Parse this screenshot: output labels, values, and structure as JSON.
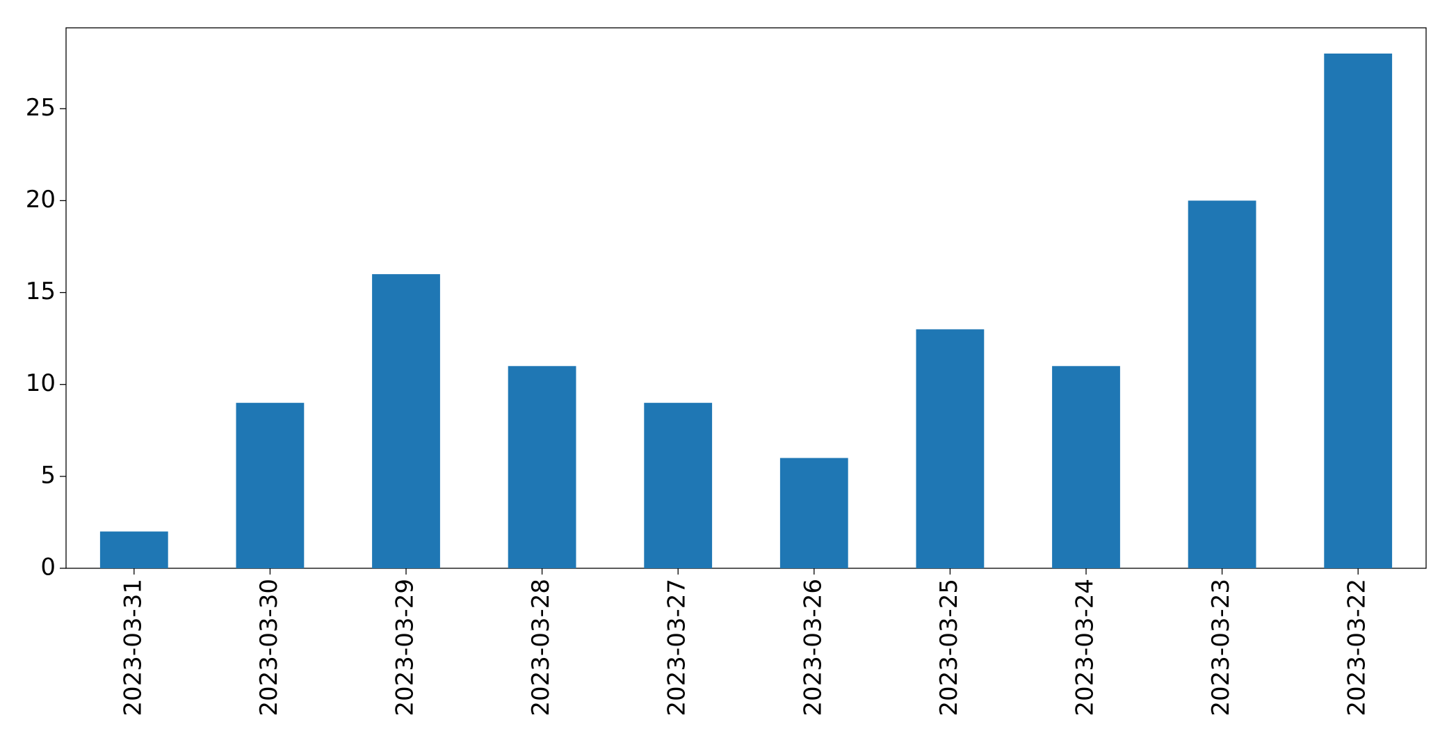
{
  "chart_data": {
    "type": "bar",
    "categories": [
      "2023-03-31",
      "2023-03-30",
      "2023-03-29",
      "2023-03-28",
      "2023-03-27",
      "2023-03-26",
      "2023-03-25",
      "2023-03-24",
      "2023-03-23",
      "2023-03-22"
    ],
    "values": [
      2,
      9,
      16,
      11,
      9,
      6,
      13,
      11,
      20,
      28
    ],
    "color": "#1f77b4",
    "ylim": [
      0,
      29.4
    ],
    "yticks": [
      0,
      5,
      10,
      15,
      20,
      25
    ],
    "grid": false
  }
}
